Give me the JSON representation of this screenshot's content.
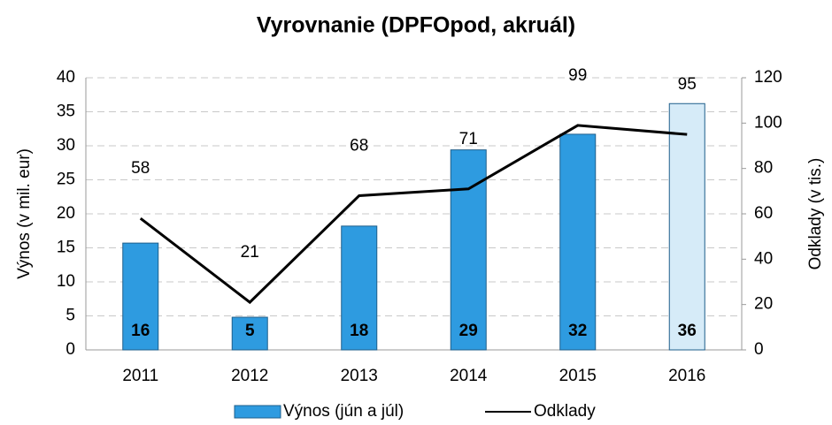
{
  "chart_data": {
    "type": "bar_line",
    "title": "Vyrovnanie  (DPFOpod, akruál)",
    "categories": [
      "2011",
      "2012",
      "2013",
      "2014",
      "2015",
      "2016"
    ],
    "ylabel": "Výnos (v mil. eur)",
    "y2label": "Odklady (v tis.)",
    "ylim": [
      0,
      40
    ],
    "yticks": [
      0,
      5,
      10,
      15,
      20,
      25,
      30,
      35,
      40
    ],
    "y2lim": [
      0,
      120
    ],
    "y2ticks": [
      0,
      20,
      40,
      60,
      80,
      100,
      120
    ],
    "grid": true,
    "legend": "bottom",
    "series": [
      {
        "name": "Výnos (jún a júl)",
        "type": "bar",
        "color": "#2e9be0",
        "colors": [
          "#2e9be0",
          "#2e9be0",
          "#2e9be0",
          "#2e9be0",
          "#2e9be0",
          "#d6ebf8"
        ],
        "values": [
          15.7,
          4.8,
          18.2,
          29.4,
          31.7,
          36.2
        ],
        "value_labels": [
          "16",
          "5",
          "18",
          "29",
          "32",
          "36"
        ]
      },
      {
        "name": "Odklady",
        "type": "line",
        "color": "#000000",
        "axis": "y2",
        "values": [
          58,
          21,
          68,
          71,
          99,
          95
        ]
      }
    ]
  }
}
